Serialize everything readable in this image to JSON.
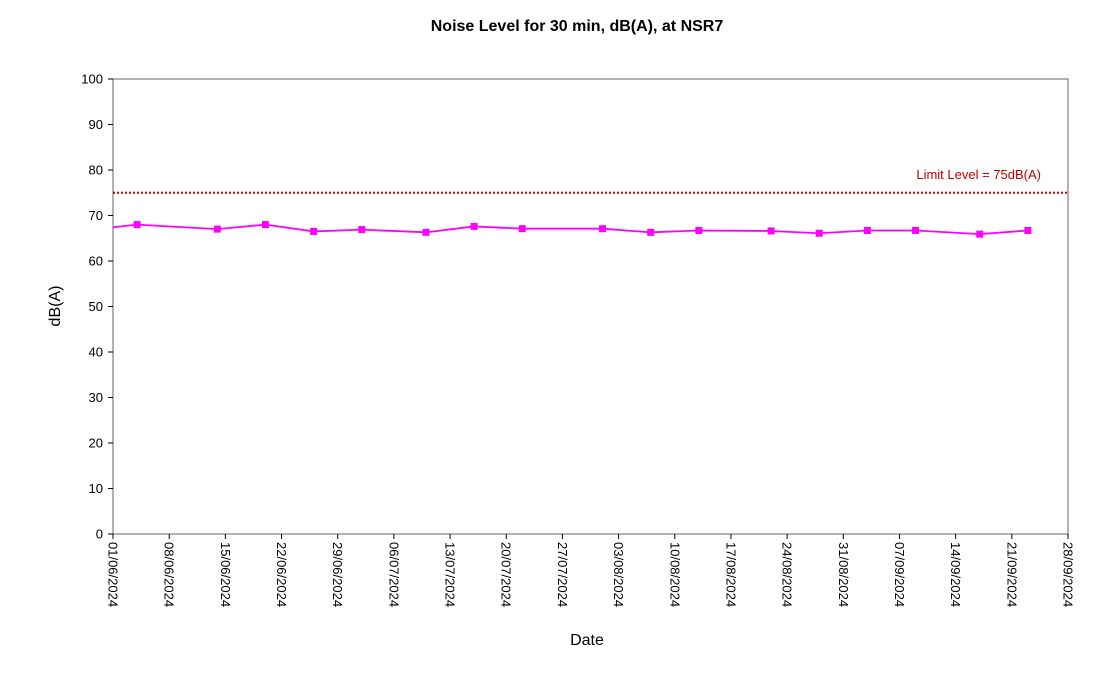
{
  "chart_data": {
    "type": "line",
    "title": "Noise Level for 30 min, dB(A), at NSR7",
    "xlabel": "Date",
    "ylabel": "dB(A)",
    "xlim": [
      "01/06/2024",
      "28/09/2024"
    ],
    "ylim": [
      0,
      100
    ],
    "y_ticks": [
      "0",
      "10",
      "20",
      "30",
      "40",
      "50",
      "60",
      "70",
      "80",
      "90",
      "100"
    ],
    "x_ticks": [
      "01/06/2024",
      "08/06/2024",
      "15/06/2024",
      "22/06/2024",
      "29/06/2024",
      "06/07/2024",
      "13/07/2024",
      "20/07/2024",
      "27/07/2024",
      "03/08/2024",
      "10/08/2024",
      "17/08/2024",
      "24/08/2024",
      "31/08/2024",
      "07/09/2024",
      "14/09/2024",
      "21/09/2024",
      "28/09/2024"
    ],
    "grid": false,
    "series": [
      {
        "color": "#ff00ff",
        "marker": "square",
        "points": [
          {
            "x": "04/06/2024",
            "y": 68.0
          },
          {
            "x": "14/06/2024",
            "y": 67.0
          },
          {
            "x": "20/06/2024",
            "y": 68.0
          },
          {
            "x": "26/06/2024",
            "y": 66.5
          },
          {
            "x": "02/07/2024",
            "y": 66.9
          },
          {
            "x": "10/07/2024",
            "y": 66.3
          },
          {
            "x": "16/07/2024",
            "y": 67.6
          },
          {
            "x": "22/07/2024",
            "y": 67.1
          },
          {
            "x": "01/08/2024",
            "y": 67.1
          },
          {
            "x": "07/08/2024",
            "y": 66.3
          },
          {
            "x": "13/08/2024",
            "y": 66.7
          },
          {
            "x": "22/08/2024",
            "y": 66.6
          },
          {
            "x": "28/08/2024",
            "y": 66.1
          },
          {
            "x": "03/09/2024",
            "y": 66.7
          },
          {
            "x": "09/09/2024",
            "y": 66.7
          },
          {
            "x": "17/09/2024",
            "y": 65.9
          },
          {
            "x": "23/09/2024",
            "y": 66.7
          }
        ],
        "line_start_y": 67.4
      }
    ],
    "limit": {
      "value": 75,
      "label": "Limit Level  = 75dB(A)",
      "color": "#c00000",
      "style": "dotted"
    }
  }
}
